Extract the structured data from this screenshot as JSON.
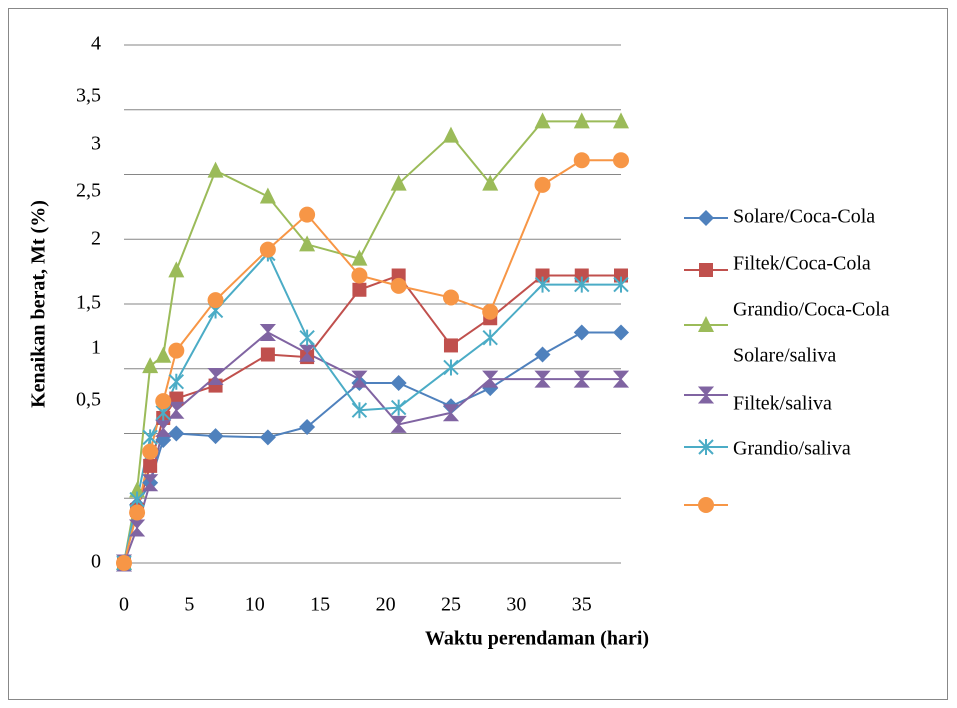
{
  "chart_data": {
    "type": "line",
    "x_label": "Waktu perendaman (hari)",
    "y_label": "Kenaikan berat, Mt (%)",
    "x": [
      0,
      1,
      2,
      3,
      4,
      7,
      11,
      14,
      18,
      21,
      25,
      28,
      32,
      35,
      38
    ],
    "xlim": [
      0,
      38
    ],
    "xticks": [
      0,
      5,
      10,
      15,
      20,
      25,
      30,
      35
    ],
    "ylim": [
      0,
      4
    ],
    "yticks": [
      0,
      {
        "value": 0.5,
        "label": "0,5"
      },
      1,
      {
        "value": 1.5,
        "label": "1,5"
      },
      2,
      {
        "value": 2.5,
        "label": "2,5"
      },
      3,
      {
        "value": 3.5,
        "label": "3,5"
      },
      4
    ],
    "grid": true,
    "legend": "right",
    "series": [
      {
        "name": "Solare/Coca-Cola",
        "color": "#4f81bd",
        "marker": "diamond",
        "values": [
          0,
          0.45,
          0.62,
          0.95,
          1.0,
          0.98,
          0.97,
          1.05,
          1.39,
          1.39,
          1.21,
          1.35,
          1.61,
          1.78,
          1.78
        ]
      },
      {
        "name": "Filtek/Coca-Cola",
        "color": "#c0504d",
        "marker": "square",
        "values": [
          0,
          0.41,
          0.75,
          1.12,
          1.27,
          1.37,
          1.61,
          1.59,
          2.11,
          2.22,
          1.68,
          1.89,
          2.22,
          2.22,
          2.22
        ]
      },
      {
        "name": "Grandio/Coca-Cola",
        "color": "#9bbb59",
        "marker": "triangle",
        "values": [
          0,
          0.56,
          1.52,
          1.6,
          2.26,
          3.03,
          2.83,
          2.46,
          2.35,
          2.93,
          3.3,
          2.93,
          3.41,
          3.41,
          3.41
        ]
      },
      {
        "name": "Solare/saliva",
        "color": "#8064a2",
        "marker": "hourglass",
        "values": [
          0,
          0.27,
          0.62,
          1.04,
          1.18,
          1.44,
          1.78,
          1.62,
          1.42,
          1.07,
          1.16,
          1.42,
          1.42,
          1.42,
          1.42
        ]
      },
      {
        "name": "Filtek/saliva",
        "color": "#4bacc6",
        "marker": "asterisk",
        "values": [
          0,
          0.49,
          0.97,
          1.16,
          1.4,
          1.95,
          2.39,
          1.74,
          1.18,
          1.2,
          1.51,
          1.74,
          2.15,
          2.15,
          2.15
        ]
      },
      {
        "name": "Grandio/saliva",
        "color": "#f79646",
        "marker": "circle",
        "values": [
          0,
          0.39,
          0.86,
          1.25,
          1.64,
          2.03,
          2.42,
          2.69,
          2.22,
          2.14,
          2.05,
          1.94,
          2.92,
          3.11,
          3.11
        ]
      }
    ]
  }
}
